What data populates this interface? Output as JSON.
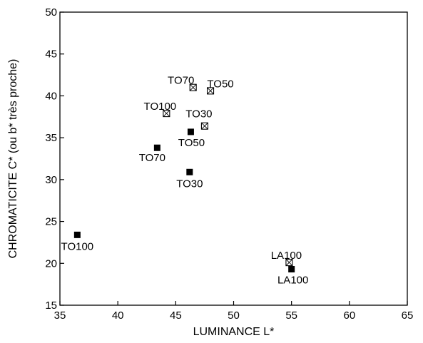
{
  "chart_data": {
    "type": "scatter",
    "xlabel": "LUMINANCE L*",
    "ylabel": "CHROMATICITE C* (ou b* très proche)",
    "xlim": [
      35,
      65
    ],
    "ylim": [
      15,
      50
    ],
    "xticks": [
      35,
      40,
      45,
      50,
      55,
      60,
      65
    ],
    "yticks": [
      15,
      20,
      25,
      30,
      35,
      40,
      45,
      50
    ],
    "grid": false,
    "legend": "none",
    "series": [
      {
        "marker": "filled-square",
        "points": [
          {
            "label": "TO100",
            "x": 36.5,
            "y": 23.4
          },
          {
            "label": "TO70",
            "x": 43.4,
            "y": 33.8
          },
          {
            "label": "TO50",
            "x": 46.3,
            "y": 35.7
          },
          {
            "label": "TO30",
            "x": 46.2,
            "y": 30.9
          },
          {
            "label": "LA100",
            "x": 55.0,
            "y": 19.3
          }
        ]
      },
      {
        "marker": "crossed-square",
        "points": [
          {
            "label": "TO70",
            "x": 46.5,
            "y": 41.0
          },
          {
            "label": "TO50",
            "x": 48.0,
            "y": 40.6
          },
          {
            "label": "TO100",
            "x": 44.2,
            "y": 37.9
          },
          {
            "label": "TO30",
            "x": 47.5,
            "y": 36.4
          },
          {
            "label": "LA100",
            "x": 54.8,
            "y": 20.1
          }
        ]
      }
    ]
  }
}
